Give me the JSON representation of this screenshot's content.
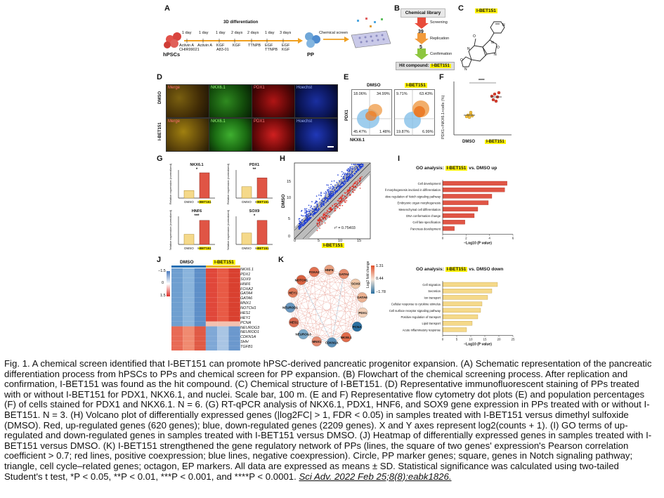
{
  "panels": {
    "A": {
      "label": "A",
      "title": "3D differentiation",
      "start": "hPSCs",
      "end": "PP",
      "screen": "Chemical screen",
      "days": [
        "1 day",
        "1 day",
        "1 day",
        "2 days",
        "2 days",
        "1 day",
        "3 days"
      ],
      "factors": [
        "Activin A\nCHIR99021",
        "Activin A",
        "KGF\nA83-01",
        "KGF",
        "TTNPB",
        "EGF\nTTNPB",
        "EGF\nKGF"
      ]
    },
    "B": {
      "label": "B",
      "library": "Chemical library",
      "steps": [
        {
          "count": "39",
          "name": "Screening"
        },
        {
          "count": "5",
          "name": "Replication"
        },
        {
          "count": "",
          "name": "Confirmation"
        }
      ],
      "hit_prefix": "Hit compound:",
      "hit": "I-BET151"
    },
    "C": {
      "label": "C",
      "compound": "I-BET151"
    },
    "D": {
      "label": "D",
      "rows": [
        "DMSO",
        "I-BET151"
      ],
      "channels": [
        "Merge",
        "NKX6.1",
        "PDX1",
        "Hoechst"
      ]
    },
    "E": {
      "label": "E",
      "cols": [
        "DMSO",
        "I-BET151"
      ],
      "quadrants": [
        [
          "18.06%",
          "34.99%",
          "45.47%",
          "1.48%"
        ],
        [
          "9.71%",
          "63.43%",
          "19.87%",
          "6.99%"
        ]
      ],
      "ylabel": "PDX1",
      "xlabel": "NKX6.1"
    },
    "F": {
      "label": "F",
      "ylabel": "PDX1+/NKX6.1+cells (%)",
      "stars": "****",
      "cats": [
        "DMSO",
        "I-BET151"
      ]
    },
    "G": {
      "label": "G",
      "genes": [
        "NKX6.1",
        "PDX1",
        "HNF6",
        "SOX9"
      ],
      "stars": [
        "*",
        "**",
        "***",
        "*"
      ],
      "ylabel": "Relative expression (normalized)",
      "cats": [
        "DMSO",
        "I-BET151"
      ]
    },
    "H": {
      "label": "H",
      "ylabel": "DMSO",
      "xlabel": "I-BET151",
      "r2": "r² = 0.75403",
      "yticks": [
        "15",
        "10",
        "5",
        "0"
      ],
      "xticks": [
        "0",
        "5",
        "10",
        "15"
      ]
    },
    "I": {
      "label": "I",
      "title_up_prefix": "GO analysis:",
      "title_up_hl": "I-BET151",
      "title_up_suffix": "vs. DMSO up",
      "terms": [
        "Cell development",
        "Cell morphogenesis involved in differentiation",
        "Positive regulation of Notch signaling pathway",
        "Embryonic organ morphogenesis",
        "Mesenchymal cell differentiation",
        "DNA conformation change",
        "Cell fate specification",
        "Pancreas development"
      ],
      "values": [
        5.5,
        5.3,
        4.2,
        3.9,
        3.0,
        2.7,
        1.9,
        1.0
      ],
      "xticks": [
        "0",
        "2",
        "4",
        "6"
      ],
      "xlabel": "−Log10 (P value)"
    },
    "J": {
      "label": "J",
      "cols": [
        "DMSO",
        "I-BET151"
      ],
      "scale": [
        "1.5",
        "0",
        "−1.5"
      ],
      "genes": [
        "NKX6.1",
        "PDX1",
        "SOX9",
        "HNF6",
        "FOXA2",
        "GATA4",
        "GATA6",
        "MNX1",
        "NOTCH1",
        "HES1",
        "HEY1",
        "PCNA",
        "NEUROG3",
        "NEUROD1",
        "CDKN1A",
        "SHH",
        "TGFB1"
      ]
    },
    "K": {
      "label": "K",
      "nodes": [
        "FOXA2",
        "HNF6",
        "GATA4",
        "SOX9",
        "GATA6",
        "PDX1",
        "PCNA",
        "NKX6.1",
        "CDKN1A",
        "MNX1",
        "NEUROG3",
        "HES1",
        "NEUROD1",
        "HEY1",
        "NOTCH1"
      ],
      "legend_title": "Log2 fold change",
      "legend_vals": [
        "1.31",
        "0.44",
        "−1.78"
      ]
    },
    "L": {
      "title_prefix": "GO analysis:",
      "title_hl": "I-BET151",
      "title_suffix": "vs. DMSO down",
      "terms": [
        "Cell migration",
        "Secretion",
        "Ion transport",
        "Cellular response to cytokine stimulus",
        "Cell surface receptor signaling pathway",
        "Positive regulation of transport",
        "Lipid transport",
        "Acute inflammatory response"
      ],
      "values": [
        19.5,
        17.5,
        16.0,
        14.0,
        13.5,
        12.5,
        10.5,
        8.5
      ],
      "xticks": [
        "0",
        "5",
        "10",
        "15",
        "20",
        "25"
      ],
      "xlabel": "−Log10 (P value)"
    }
  },
  "caption": {
    "text": "Fig. 1. A chemical screen identified that I-BET151 can promote hPSC-derived pancreatic progenitor expansion. (A) Schematic representation of the pancreatic differentiation process from hPSCs to PPs and chemical screen for PP expansion. (B) Flowchart of the chemical screening process. After replication and confirmation, I-BET151 was found as the hit compound. (C) Chemical structure of I-BET151. (D) Representative immunofluorescent staining of PPs treated with or without I-BET151 for PDX1, NKX6.1, and nuclei. Scale bar, 100  m. (E and F) Representative flow cytometry dot plots (E) and population percentages (F) of cells stained for PDX1 and NKX6.1. N = 6. (G) RT-qPCR analysis of NKX6.1, PDX1, HNF6, and SOX9 gene expression in PPs treated with or without I-BET151. N = 3. (H) Volcano plot of differentially expressed genes (|log2FC| > 1, FDR < 0.05) in samples treated with I-BET151 versus dimethyl sulfoxide (DMSO). Red, up-regulated genes (620 genes); blue, down-regulated genes (2209 genes). X and Y axes represent log2(counts + 1). (I) GO terms of up-regulated and down-regulated genes in samples treated with I-BET151 versus DMSO. (J) Heatmap of differentially expressed genes in samples treated with I-BET151 versus DMSO. (K) I-BET151 strengthened the gene regulatory network of PPs (lines, the square of two genes' expression's Pearson correlation coefficient > 0.7; red lines, positive coexpression; blue lines, negative coexpression). Circle, PP marker genes; square, genes in Notch signaling pathway; triangle, cell cycle–related genes; octagon, EP markers. All data are expressed as means ± SD. Statistical significance was calculated using two-tailed Student's t test, *P < 0.05, **P < 0.01, ***P < 0.001, and ****P < 0.0001.",
    "citation": "Sci Adv. 2022 Feb 25;8(8):eabk1826."
  },
  "colors": {
    "up": "#e2342a",
    "down": "#1f3fd6",
    "bar_up": "#e05545",
    "bar_down": "#f5d98a",
    "highlight": "#fff200"
  }
}
